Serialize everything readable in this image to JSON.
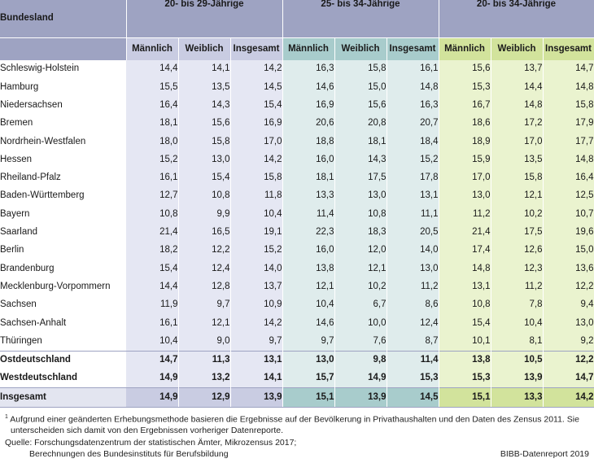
{
  "header": {
    "bundesland": "Bundesland",
    "groups": [
      "20- bis 29-Jährige",
      "25- bis 34-Jährige",
      "20- bis 34-Jährige"
    ],
    "subcols": [
      "Männlich",
      "Weiblich",
      "Insgesamt"
    ]
  },
  "rows": [
    {
      "name": "Schleswig-Holstein",
      "v": [
        "14,4",
        "14,1",
        "14,2",
        "16,3",
        "15,8",
        "16,1",
        "15,6",
        "13,7",
        "14,7"
      ]
    },
    {
      "name": "Hamburg",
      "v": [
        "15,5",
        "13,5",
        "14,5",
        "14,6",
        "15,0",
        "14,8",
        "15,3",
        "14,4",
        "14,8"
      ]
    },
    {
      "name": "Niedersachsen",
      "v": [
        "16,4",
        "14,3",
        "15,4",
        "16,9",
        "15,6",
        "16,3",
        "16,7",
        "14,8",
        "15,8"
      ]
    },
    {
      "name": "Bremen",
      "v": [
        "18,1",
        "15,6",
        "16,9",
        "20,6",
        "20,8",
        "20,7",
        "18,6",
        "17,2",
        "17,9"
      ]
    },
    {
      "name": "Nordrhein-Westfalen",
      "v": [
        "18,0",
        "15,8",
        "17,0",
        "18,8",
        "18,1",
        "18,4",
        "18,9",
        "17,0",
        "17,7"
      ]
    },
    {
      "name": "Hessen",
      "v": [
        "15,2",
        "13,0",
        "14,2",
        "16,0",
        "14,3",
        "15,2",
        "15,9",
        "13,5",
        "14,8"
      ]
    },
    {
      "name": "Rheiland-Pfalz",
      "v": [
        "16,1",
        "15,4",
        "15,8",
        "18,1",
        "17,5",
        "17,8",
        "17,0",
        "15,8",
        "16,4"
      ]
    },
    {
      "name": "Baden-Württemberg",
      "v": [
        "12,7",
        "10,8",
        "11,8",
        "13,3",
        "13,0",
        "13,1",
        "13,0",
        "12,1",
        "12,5"
      ]
    },
    {
      "name": "Bayern",
      "v": [
        "10,8",
        "9,9",
        "10,4",
        "11,4",
        "10,8",
        "11,1",
        "11,2",
        "10,2",
        "10,7"
      ]
    },
    {
      "name": "Saarland",
      "v": [
        "21,4",
        "16,5",
        "19,1",
        "22,3",
        "18,3",
        "20,5",
        "21,4",
        "17,5",
        "19,6"
      ]
    },
    {
      "name": "Berlin",
      "v": [
        "18,2",
        "12,2",
        "15,2",
        "16,0",
        "12,0",
        "14,0",
        "17,4",
        "12,6",
        "15,0"
      ]
    },
    {
      "name": "Brandenburg",
      "v": [
        "15,4",
        "12,4",
        "14,0",
        "13,8",
        "12,1",
        "13,0",
        "14,8",
        "12,3",
        "13,6"
      ]
    },
    {
      "name": "Mecklenburg-Vorpommern",
      "v": [
        "14,4",
        "12,8",
        "13,7",
        "12,1",
        "10,2",
        "11,2",
        "13,1",
        "11,2",
        "12,2"
      ]
    },
    {
      "name": "Sachsen",
      "v": [
        "11,9",
        "9,7",
        "10,9",
        "10,4",
        "6,7",
        "8,6",
        "10,8",
        "7,8",
        "9,4"
      ]
    },
    {
      "name": "Sachsen-Anhalt",
      "v": [
        "16,1",
        "12,1",
        "14,2",
        "14,6",
        "10,0",
        "12,4",
        "15,4",
        "10,4",
        "13,0"
      ]
    },
    {
      "name": "Thüringen",
      "v": [
        "10,4",
        "9,0",
        "9,7",
        "9,7",
        "7,6",
        "8,7",
        "10,1",
        "8,1",
        "9,2"
      ]
    }
  ],
  "aggregates": [
    {
      "name": "Ostdeutschland",
      "v": [
        "14,7",
        "11,3",
        "13,1",
        "13,0",
        "9,8",
        "11,4",
        "13,8",
        "10,5",
        "12,2"
      ]
    },
    {
      "name": "Westdeutschland",
      "v": [
        "14,9",
        "13,2",
        "14,1",
        "15,7",
        "14,9",
        "15,3",
        "15,3",
        "13,9",
        "14,7"
      ]
    }
  ],
  "total": {
    "name": "Insgesamt",
    "v": [
      "14,9",
      "12,9",
      "13,9",
      "15,1",
      "13,9",
      "14,5",
      "15,1",
      "13,3",
      "14,2"
    ]
  },
  "footnote": {
    "mark": "1",
    "text": "Aufgrund einer geänderten Erhebungsmethode basieren die Ergebnisse auf der Bevölkerung in Privathaushalten und den Daten des Zensus 2011. Sie unterscheiden sich damit von den Ergebnissen vorheriger Datenreporte."
  },
  "source": {
    "line1": "Quelle: Forschungsdatenzentrum der statistischen Ämter, Mikrozensus 2017;",
    "line2": "Berechnungen des Bundesinstituts für Berufsbildung"
  },
  "credit": "BIBB-Datenreport 2019"
}
